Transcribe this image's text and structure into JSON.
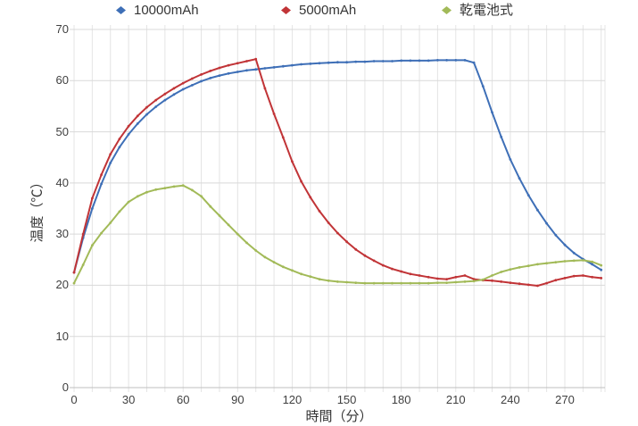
{
  "legend": {
    "items": [
      {
        "label": "10000mAh",
        "color": "#3E6FB7"
      },
      {
        "label": "5000mAh",
        "color": "#C13437"
      },
      {
        "label": "乾電池式",
        "color": "#A2BA58"
      }
    ]
  },
  "chart_data": {
    "type": "line",
    "title": "",
    "xlabel": "時間（分）",
    "ylabel": "温度（℃）",
    "xlim": [
      0,
      290
    ],
    "ylim": [
      0,
      70
    ],
    "x_ticks": [
      0,
      30,
      60,
      90,
      120,
      150,
      180,
      210,
      240,
      270
    ],
    "y_ticks": [
      0,
      10,
      20,
      30,
      40,
      50,
      60,
      70
    ],
    "x_minor_grid_interval": 10,
    "grid": true,
    "legend_position": "top",
    "x": [
      0,
      5,
      10,
      15,
      20,
      25,
      30,
      35,
      40,
      45,
      50,
      55,
      60,
      65,
      70,
      75,
      80,
      85,
      90,
      95,
      100,
      105,
      110,
      115,
      120,
      125,
      130,
      135,
      140,
      145,
      150,
      155,
      160,
      165,
      170,
      175,
      180,
      185,
      190,
      195,
      200,
      205,
      210,
      215,
      220,
      225,
      230,
      235,
      240,
      245,
      250,
      255,
      260,
      265,
      270,
      275,
      280,
      285,
      290
    ],
    "series": [
      {
        "name": "10000mAh",
        "color": "#3E6FB7",
        "values": [
          22.5,
          29.3,
          35.0,
          39.8,
          43.9,
          47.0,
          49.5,
          51.6,
          53.4,
          54.9,
          56.2,
          57.3,
          58.3,
          59.1,
          59.9,
          60.5,
          61.0,
          61.4,
          61.7,
          62.0,
          62.2,
          62.4,
          62.6,
          62.8,
          63.0,
          63.2,
          63.3,
          63.4,
          63.5,
          63.6,
          63.6,
          63.7,
          63.7,
          63.8,
          63.8,
          63.8,
          63.9,
          63.9,
          63.9,
          63.9,
          64.0,
          64.0,
          64.0,
          64.0,
          63.5,
          58.9,
          53.8,
          49.0,
          44.6,
          40.9,
          37.6,
          34.7,
          32.1,
          29.8,
          27.9,
          26.3,
          25.1,
          24.1,
          23.0
        ]
      },
      {
        "name": "5000mAh",
        "color": "#C13437",
        "values": [
          22.5,
          30.0,
          37.0,
          41.6,
          45.6,
          48.6,
          51.1,
          53.1,
          54.8,
          56.2,
          57.4,
          58.5,
          59.5,
          60.4,
          61.2,
          61.9,
          62.5,
          63.0,
          63.4,
          63.8,
          64.2,
          58.5,
          53.5,
          48.9,
          44.2,
          40.3,
          37.2,
          34.5,
          32.2,
          30.2,
          28.5,
          27.0,
          25.8,
          24.8,
          23.9,
          23.2,
          22.7,
          22.2,
          21.9,
          21.6,
          21.3,
          21.2,
          21.6,
          21.9,
          21.2,
          21.0,
          20.9,
          20.7,
          20.5,
          20.3,
          20.1,
          19.9,
          20.4,
          21.0,
          21.4,
          21.8,
          21.9,
          21.6,
          21.4
        ]
      },
      {
        "name": "乾電池式",
        "color": "#A2BA58",
        "values": [
          20.4,
          24.0,
          27.8,
          30.2,
          32.2,
          34.4,
          36.3,
          37.4,
          38.2,
          38.7,
          39.0,
          39.3,
          39.5,
          38.6,
          37.4,
          35.4,
          33.6,
          31.8,
          30.0,
          28.3,
          26.8,
          25.5,
          24.5,
          23.6,
          22.9,
          22.2,
          21.7,
          21.2,
          20.9,
          20.7,
          20.6,
          20.5,
          20.4,
          20.4,
          20.4,
          20.4,
          20.4,
          20.4,
          20.4,
          20.4,
          20.5,
          20.5,
          20.6,
          20.7,
          20.8,
          21.1,
          21.9,
          22.6,
          23.1,
          23.5,
          23.8,
          24.1,
          24.3,
          24.5,
          24.7,
          24.8,
          24.9,
          24.6,
          23.9
        ]
      }
    ]
  },
  "style": {
    "grid_color_h": "#d9d9d9",
    "grid_color_v": "#e4e4e4",
    "axis_line_color": "#bfbfbf"
  }
}
